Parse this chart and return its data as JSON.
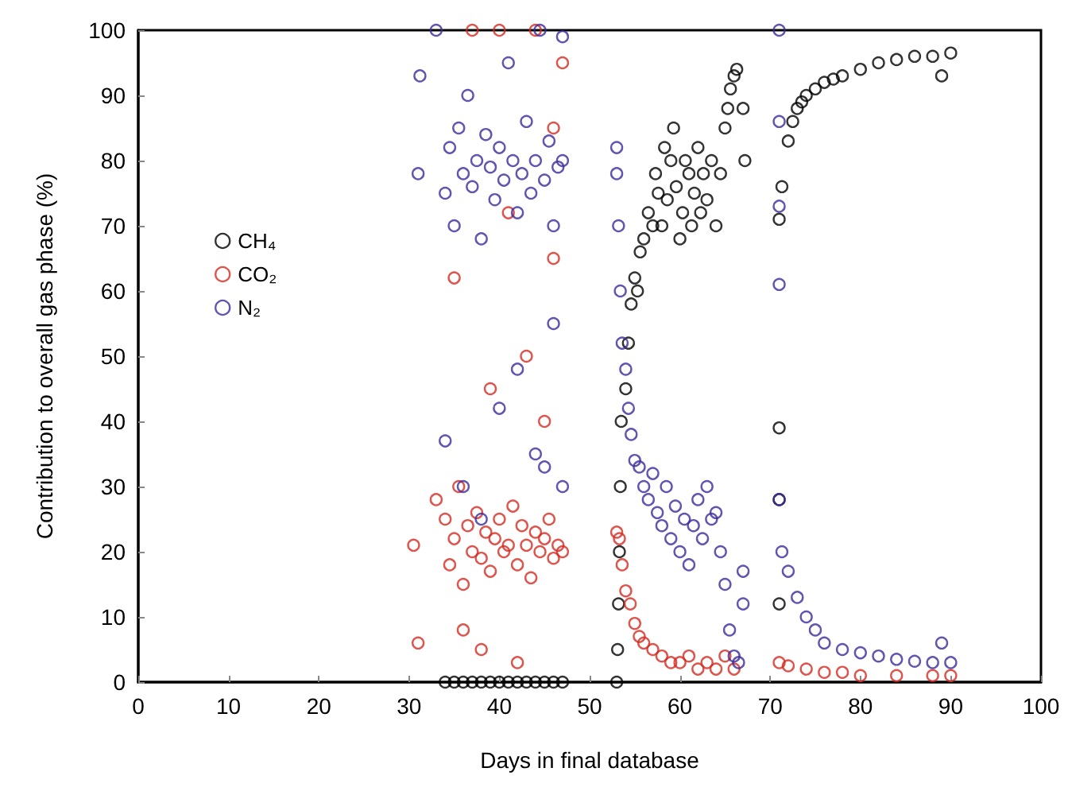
{
  "chart_data": {
    "type": "scatter",
    "xlabel": "Days in final database",
    "ylabel": "Contribution to overall gas phase (%)",
    "xlim": [
      0,
      100
    ],
    "xticks": [
      0,
      10,
      20,
      30,
      40,
      50,
      60,
      70,
      80,
      90,
      100
    ],
    "ylim": [
      0,
      100
    ],
    "yticks": [
      0,
      10,
      20,
      30,
      40,
      50,
      60,
      70,
      80,
      90,
      100
    ],
    "legend": "top left",
    "marker": "circle",
    "series": [
      {
        "name": "CH₄",
        "color": "#000000",
        "x": [
          34,
          35,
          36,
          37,
          38,
          39,
          40,
          41,
          42,
          43,
          44,
          45,
          46,
          47,
          53,
          53.1,
          53.2,
          53.3,
          53.4,
          53.5,
          54,
          54.3,
          54.6,
          55,
          55.3,
          55.6,
          56,
          56.5,
          57,
          57.3,
          57.6,
          58,
          58.3,
          58.6,
          59,
          59.3,
          59.6,
          60,
          60.3,
          60.6,
          61,
          61.3,
          61.6,
          62,
          62.3,
          62.6,
          63,
          63.5,
          64,
          64.5,
          65,
          65.3,
          65.6,
          66,
          66.3,
          67,
          67.2,
          71,
          71,
          71,
          71,
          71.3,
          72,
          72.5,
          73,
          73.5,
          74,
          75,
          76,
          77,
          78,
          80,
          82,
          84,
          86,
          88,
          89,
          90
        ],
        "values": [
          0,
          0,
          0,
          0,
          0,
          0,
          0,
          0,
          0,
          0,
          0,
          0,
          0,
          0,
          0,
          5,
          12,
          20,
          30,
          40,
          45,
          52,
          58,
          62,
          60,
          66,
          68,
          72,
          70,
          78,
          75,
          70,
          82,
          74,
          80,
          85,
          76,
          68,
          72,
          80,
          78,
          70,
          75,
          82,
          72,
          78,
          74,
          80,
          70,
          78,
          85,
          88,
          91,
          93,
          94,
          88,
          80,
          71,
          39,
          28,
          12,
          76,
          83,
          86,
          88,
          89,
          90,
          91,
          92,
          92.5,
          93,
          94,
          95,
          95.5,
          96,
          96,
          93,
          96.5
        ]
      },
      {
        "name": "CO₂",
        "color": "#d42a20",
        "x": [
          30.5,
          31,
          33,
          34,
          34.5,
          35,
          35.5,
          36,
          36.5,
          37,
          37.5,
          38,
          38.5,
          39,
          39.5,
          40,
          40.5,
          41,
          41.5,
          42,
          42.5,
          43,
          43.5,
          44,
          44.5,
          45,
          45.5,
          46,
          46.5,
          47,
          35,
          37,
          39,
          40,
          41,
          43,
          44,
          45,
          46,
          47,
          36,
          38,
          42,
          46,
          53,
          53.3,
          53.6,
          54,
          54.5,
          55,
          55.5,
          56,
          57,
          58,
          59,
          60,
          61,
          62,
          63,
          64,
          65,
          66,
          71,
          72,
          74,
          76,
          78,
          80,
          84,
          88,
          90
        ],
        "values": [
          21,
          6,
          28,
          25,
          18,
          22,
          30,
          15,
          24,
          20,
          26,
          19,
          23,
          17,
          22,
          25,
          20,
          21,
          27,
          18,
          24,
          21,
          16,
          23,
          20,
          22,
          25,
          19,
          21,
          20,
          62,
          100,
          45,
          100,
          72,
          50,
          100,
          40,
          85,
          95,
          8,
          5,
          3,
          65,
          23,
          22,
          18,
          14,
          12,
          9,
          7,
          6,
          5,
          4,
          3,
          3,
          4,
          2,
          3,
          2,
          4,
          2,
          3,
          2.5,
          2,
          1.5,
          1.5,
          1,
          1,
          1,
          1
        ]
      },
      {
        "name": "N₂",
        "color": "#3b2a9c",
        "x": [
          31,
          31.2,
          33,
          34,
          34.5,
          35,
          35.5,
          36,
          36.5,
          37,
          37.5,
          38,
          38.5,
          39,
          39.5,
          40,
          40.5,
          41,
          41.5,
          42,
          42.5,
          43,
          43.5,
          44,
          44.5,
          45,
          45.5,
          46,
          46.5,
          47,
          34,
          36,
          38,
          40,
          42,
          44,
          45,
          46,
          47,
          47,
          53,
          53,
          53.2,
          53.4,
          53.6,
          54,
          54.3,
          54.6,
          55,
          55.5,
          56,
          56.5,
          57,
          57.5,
          58,
          58.5,
          59,
          59.5,
          60,
          60.5,
          61,
          61.5,
          62,
          62.5,
          63,
          63.5,
          64,
          64.5,
          65,
          65.5,
          66,
          66.5,
          67,
          67,
          71,
          71,
          71,
          71,
          71,
          71.3,
          72,
          73,
          74,
          75,
          76,
          78,
          80,
          82,
          84,
          86,
          88,
          89,
          90
        ],
        "values": [
          78,
          93,
          100,
          75,
          82,
          70,
          85,
          78,
          90,
          76,
          80,
          68,
          84,
          79,
          74,
          82,
          77,
          95,
          80,
          72,
          78,
          86,
          75,
          80,
          100,
          77,
          83,
          70,
          79,
          80,
          37,
          30,
          25,
          42,
          48,
          35,
          33,
          55,
          30,
          99,
          82,
          78,
          70,
          60,
          52,
          48,
          42,
          38,
          34,
          33,
          30,
          28,
          32,
          26,
          24,
          30,
          22,
          27,
          20,
          25,
          18,
          24,
          28,
          22,
          30,
          25,
          26,
          20,
          15,
          8,
          4,
          3,
          17,
          12,
          100,
          86,
          73,
          61,
          28,
          20,
          17,
          13,
          10,
          8,
          6,
          5,
          4.5,
          4,
          3.5,
          3.2,
          3,
          6,
          3
        ]
      }
    ]
  }
}
